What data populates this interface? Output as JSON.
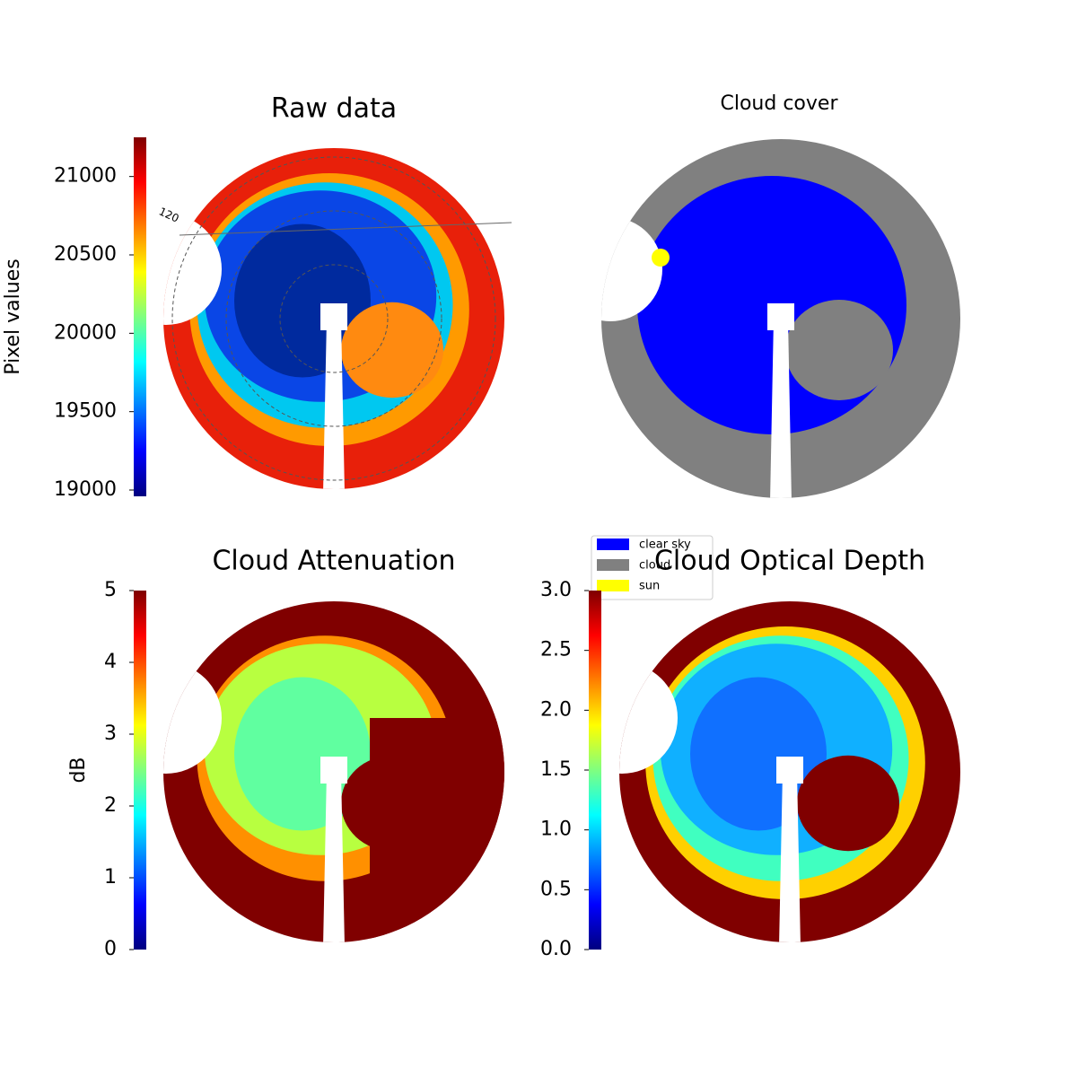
{
  "chart_data": [
    {
      "type": "image",
      "title": "Raw data",
      "colormap": "jet",
      "ylabel": "Pixel values",
      "ylim": [
        18960,
        21250
      ],
      "yticks": [
        19000,
        19500,
        20000,
        20500,
        21000
      ],
      "annotations": [
        "120"
      ]
    },
    {
      "type": "image",
      "title": "Cloud cover",
      "series": [
        {
          "name": "clear sky",
          "color": "#0000ff"
        },
        {
          "name": "cloud",
          "color": "#808080"
        },
        {
          "name": "sun",
          "color": "#ffff00"
        }
      ]
    },
    {
      "type": "image",
      "title": "Cloud Attenuation",
      "colormap": "jet",
      "ylabel": "dB",
      "ylim": [
        0,
        5
      ],
      "yticks": [
        0,
        1,
        2,
        3,
        4,
        5
      ]
    },
    {
      "type": "image",
      "title": "Cloud Optical Depth",
      "colormap": "jet",
      "ylim": [
        0,
        3
      ],
      "yticks": [
        {
          "value": 0,
          "label": "0.0"
        },
        {
          "value": 0.5,
          "label": "0.5"
        },
        {
          "value": 1,
          "label": "1.0"
        },
        {
          "value": 1.5,
          "label": "1.5"
        },
        {
          "value": 2,
          "label": "2.0"
        },
        {
          "value": 2.5,
          "label": "2.5"
        },
        {
          "value": 3,
          "label": "3.0"
        }
      ]
    }
  ]
}
